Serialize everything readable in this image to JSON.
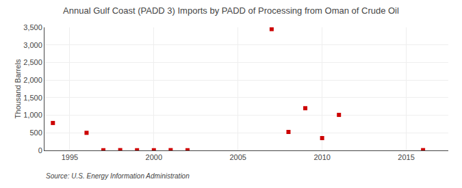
{
  "chart_data": {
    "type": "scatter",
    "title": "Annual Gulf Coast (PADD 3) Imports by PADD of Processing from Oman of Crude Oil",
    "ylabel": "Thousand Barrels",
    "annotations": [
      "Source: U.S. Energy Information Administration"
    ],
    "x": [
      1994,
      1996,
      1997,
      1998,
      1999,
      2000,
      2001,
      2002,
      2007,
      2008,
      2009,
      2010,
      2011,
      2016
    ],
    "values": [
      780,
      500,
      5,
      8,
      5,
      5,
      8,
      5,
      3450,
      525,
      1200,
      350,
      1010,
      8
    ],
    "color": "#cc0000",
    "marker": "square",
    "xlim": [
      1993.5,
      2017.5
    ],
    "ylim": [
      0,
      3500
    ],
    "xticks": [
      1995,
      2000,
      2005,
      2010,
      2015
    ],
    "yticks": [
      0,
      500,
      {
        "value": 1000,
        "label": "1,000"
      },
      {
        "value": 1500,
        "label": "1,500"
      },
      {
        "value": 2000,
        "label": "2,000"
      },
      {
        "value": 2500,
        "label": "2,500"
      },
      {
        "value": 3000,
        "label": "3,000"
      },
      {
        "value": 3500,
        "label": "3,500"
      }
    ],
    "grid": true
  }
}
